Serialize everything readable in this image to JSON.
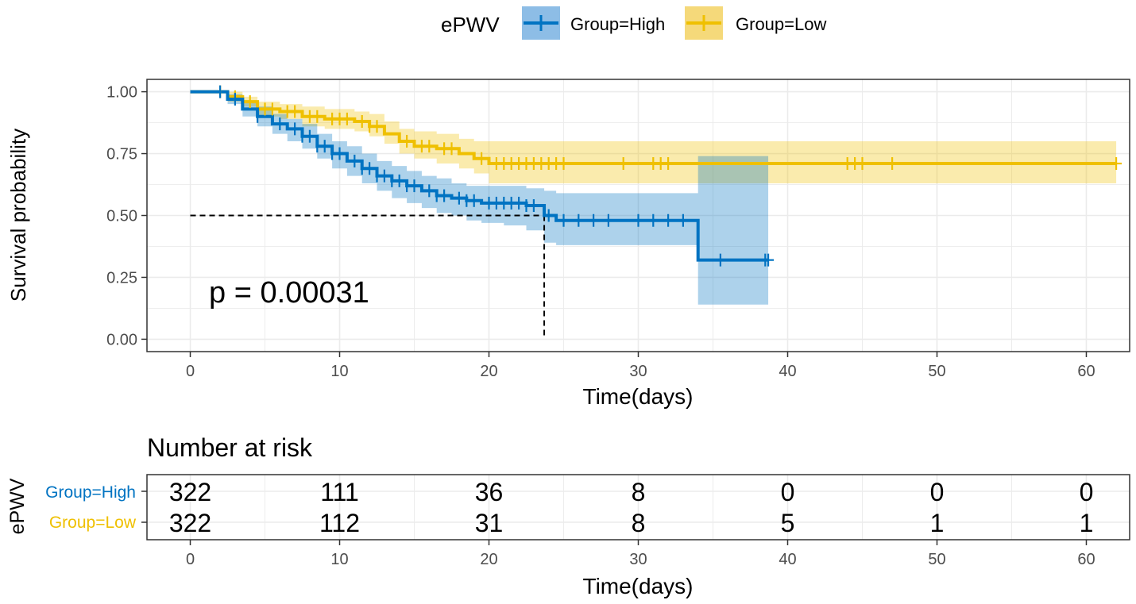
{
  "chart_data": [
    {
      "type": "line",
      "subtype": "kaplan-meier",
      "legend": {
        "title": "ePWV",
        "position": "top"
      },
      "xlabel": "Time(days)",
      "ylabel": "Survival probability",
      "xlim": [
        0,
        62
      ],
      "ylim": [
        0,
        1
      ],
      "xticks": [
        0,
        10,
        20,
        30,
        40,
        50,
        60
      ],
      "yticks": [
        "0.00",
        "0.25",
        "0.50",
        "0.75",
        "1.00"
      ],
      "grid": true,
      "annotation": "p = 0.00031",
      "median_survival": {
        "x": 23.7,
        "y": 0.5
      },
      "series": [
        {
          "name": "Group=High",
          "color": "#0073C2",
          "fill": "#8DBDE6",
          "steps": [
            [
              0,
              1.0
            ],
            [
              1.5,
              1.0
            ],
            [
              2.5,
              0.97
            ],
            [
              3.5,
              0.93
            ],
            [
              4.5,
              0.9
            ],
            [
              5.5,
              0.87
            ],
            [
              6.5,
              0.85
            ],
            [
              7.5,
              0.82
            ],
            [
              8.5,
              0.78
            ],
            [
              9.5,
              0.75
            ],
            [
              10.5,
              0.72
            ],
            [
              11.5,
              0.69
            ],
            [
              12.5,
              0.66
            ],
            [
              13.5,
              0.64
            ],
            [
              14.5,
              0.62
            ],
            [
              15.5,
              0.6
            ],
            [
              16.5,
              0.58
            ],
            [
              17.5,
              0.57
            ],
            [
              18.5,
              0.56
            ],
            [
              19.5,
              0.55
            ],
            [
              21,
              0.55
            ],
            [
              22.5,
              0.54
            ],
            [
              23.7,
              0.5
            ],
            [
              24.5,
              0.48
            ],
            [
              34,
              0.48
            ],
            [
              34,
              0.32
            ],
            [
              38.7,
              0.32
            ]
          ],
          "lower": [
            1.0,
            1.0,
            0.95,
            0.9,
            0.86,
            0.83,
            0.8,
            0.77,
            0.73,
            0.69,
            0.66,
            0.63,
            0.6,
            0.57,
            0.55,
            0.53,
            0.51,
            0.5,
            0.48,
            0.47,
            0.46,
            0.44,
            0.39,
            0.38,
            0.38,
            0.14,
            0.14
          ],
          "upper": [
            1.0,
            1.0,
            0.99,
            0.96,
            0.94,
            0.91,
            0.89,
            0.87,
            0.83,
            0.8,
            0.78,
            0.75,
            0.72,
            0.7,
            0.68,
            0.66,
            0.65,
            0.63,
            0.62,
            0.62,
            0.62,
            0.61,
            0.6,
            0.59,
            0.59,
            0.74,
            0.74
          ],
          "censor": [
            2,
            3,
            4.5,
            6,
            7,
            7.5,
            8,
            8.5,
            9,
            9.5,
            10,
            11,
            11.5,
            12,
            12.5,
            13,
            13.5,
            14,
            14.5,
            15,
            16,
            16.5,
            17,
            18,
            18.5,
            19,
            20,
            20.5,
            21,
            21.5,
            22,
            22.5,
            23,
            24,
            25,
            26,
            27,
            28,
            30,
            31,
            32,
            33,
            35.5,
            38.5
          ],
          "censor_end": 38.7
        },
        {
          "name": "Group=Low",
          "color": "#EFC000",
          "fill": "#F5D97A",
          "steps": [
            [
              0,
              1.0
            ],
            [
              1.5,
              1.0
            ],
            [
              2.5,
              0.98
            ],
            [
              3.5,
              0.96
            ],
            [
              4.5,
              0.93
            ],
            [
              6,
              0.92
            ],
            [
              7.5,
              0.9
            ],
            [
              9,
              0.89
            ],
            [
              11,
              0.88
            ],
            [
              12,
              0.86
            ],
            [
              13,
              0.83
            ],
            [
              14,
              0.8
            ],
            [
              15,
              0.78
            ],
            [
              16.5,
              0.77
            ],
            [
              18,
              0.75
            ],
            [
              19,
              0.73
            ],
            [
              20,
              0.71
            ],
            [
              62,
              0.71
            ]
          ],
          "lower": [
            1.0,
            1.0,
            0.96,
            0.94,
            0.9,
            0.89,
            0.86,
            0.85,
            0.84,
            0.82,
            0.79,
            0.75,
            0.73,
            0.71,
            0.69,
            0.67,
            0.63,
            0.62
          ],
          "upper": [
            1.0,
            1.0,
            1.0,
            0.98,
            0.96,
            0.95,
            0.94,
            0.93,
            0.92,
            0.91,
            0.88,
            0.85,
            0.84,
            0.83,
            0.81,
            0.8,
            0.8,
            0.8
          ],
          "censor": [
            2,
            3,
            4,
            5,
            5.5,
            6.5,
            7,
            8,
            8.5,
            9.5,
            10,
            10.5,
            11.5,
            12,
            12.5,
            14.5,
            15.5,
            16,
            17,
            17.5,
            19.5,
            20.5,
            21,
            21.5,
            22,
            22.5,
            23,
            23.5,
            24,
            24.5,
            25,
            29,
            31,
            31.5,
            32,
            44,
            44.5,
            45,
            47
          ],
          "censor_end": 62
        }
      ]
    },
    {
      "type": "table",
      "title": "Number at risk",
      "ylabel": "ePWV",
      "xlabel": "Time(days)",
      "xticks": [
        0,
        10,
        20,
        30,
        40,
        50,
        60
      ],
      "rows": [
        {
          "name": "Group=High",
          "color": "#0073C2",
          "values": [
            "322",
            "111",
            "36",
            "8",
            "0",
            "0",
            "0"
          ]
        },
        {
          "name": "Group=Low",
          "color": "#EFC000",
          "values": [
            "322",
            "112",
            "31",
            "8",
            "5",
            "1",
            "1"
          ]
        }
      ]
    }
  ]
}
